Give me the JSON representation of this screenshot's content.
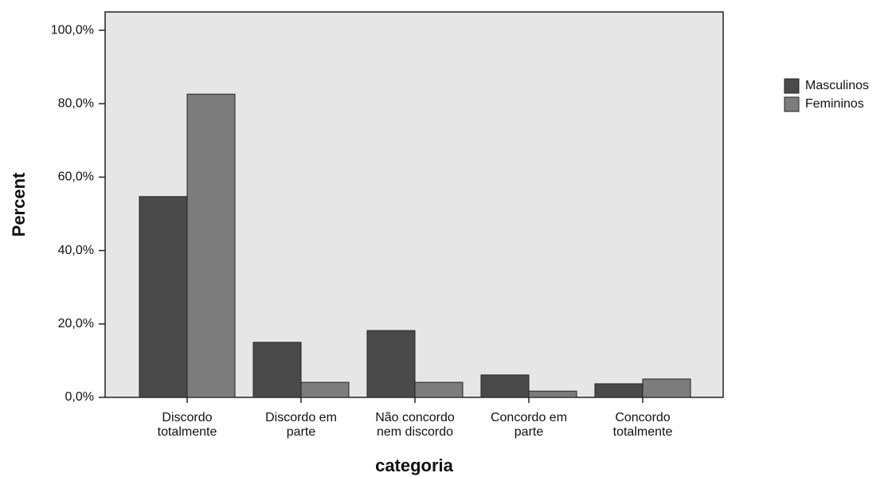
{
  "chart_data": {
    "type": "bar",
    "x_label": "categoria",
    "y_label": "Percent",
    "categories": [
      "Discordo\ntotalmente",
      "Discordo em\nparte",
      "Não concordo\nnem discordo",
      "Concordo em\nparte",
      "Concordo\ntotalmente"
    ],
    "series": [
      {
        "name": "Masculinos",
        "color": "#4a4a4a",
        "values": [
          54.7,
          15.0,
          18.2,
          6.1,
          3.7
        ]
      },
      {
        "name": "Femininos",
        "color": "#7c7c7c",
        "values": [
          82.6,
          4.1,
          4.1,
          1.7,
          5.0
        ]
      }
    ],
    "ylim": [
      0,
      105
    ],
    "yticks": [
      {
        "value": 0,
        "label": "0,0%"
      },
      {
        "value": 20,
        "label": "20,0%"
      },
      {
        "value": 40,
        "label": "40,0%"
      },
      {
        "value": 60,
        "label": "60,0%"
      },
      {
        "value": 80,
        "label": "80,0%"
      },
      {
        "value": 100,
        "label": "100,0%"
      }
    ],
    "legend": "right"
  }
}
